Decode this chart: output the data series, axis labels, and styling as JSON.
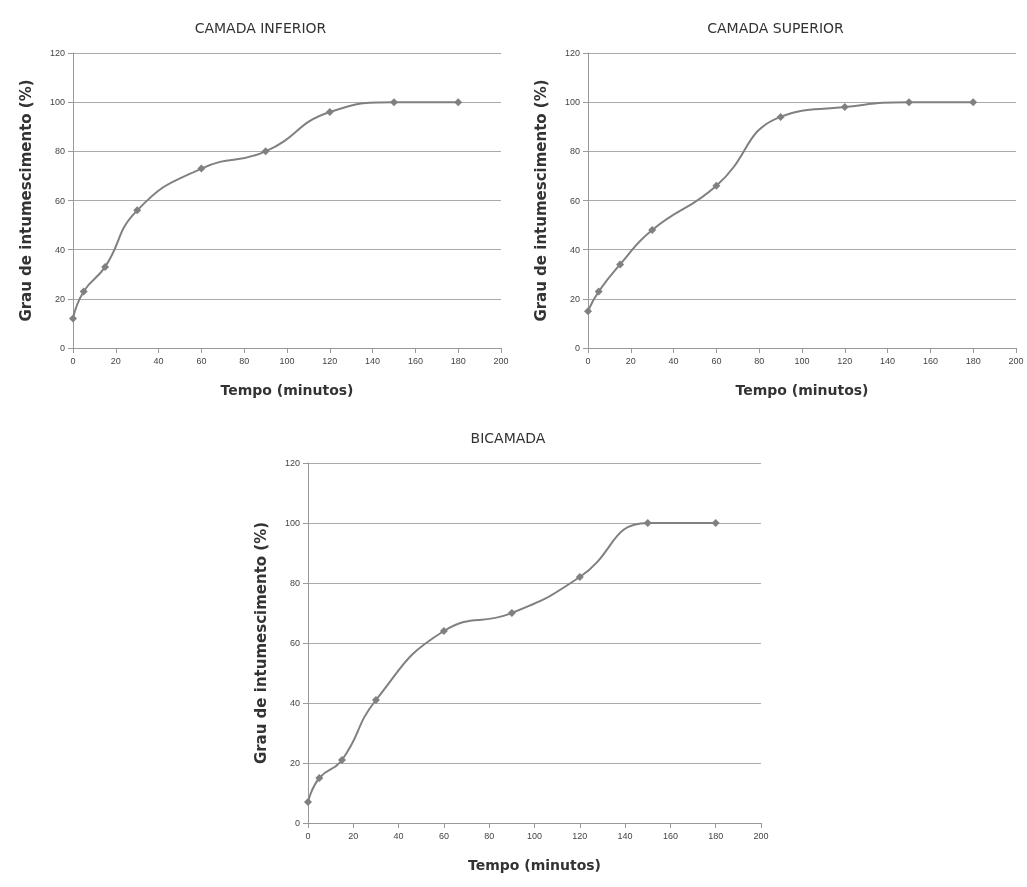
{
  "chart_data": [
    {
      "type": "line",
      "title": "CAMADA INFERIOR",
      "xlabel": "Tempo (minutos)",
      "ylabel": "Grau de intumescimento (%)",
      "x": [
        0,
        5,
        15,
        30,
        60,
        90,
        120,
        150,
        180
      ],
      "series": [
        {
          "color": "#808080",
          "values": [
            12,
            23,
            33,
            56,
            73,
            80,
            96,
            100,
            100
          ]
        }
      ],
      "xlim": [
        0,
        200
      ],
      "xticks": [
        0,
        20,
        40,
        60,
        80,
        100,
        120,
        140,
        160,
        180,
        200
      ],
      "ylim": [
        0,
        120
      ],
      "yticks": [
        0,
        20,
        40,
        60,
        80,
        100,
        120
      ],
      "grid": "y",
      "marker": "diamond",
      "line_style": "solid"
    },
    {
      "type": "line",
      "title": "CAMADA SUPERIOR",
      "xlabel": "Tempo (minutos)",
      "ylabel": "Grau de intumescimento (%)",
      "x": [
        0,
        5,
        15,
        30,
        60,
        90,
        120,
        150,
        180
      ],
      "series": [
        {
          "color": "#808080",
          "values": [
            15,
            23,
            34,
            48,
            66,
            94,
            98,
            100,
            100
          ]
        }
      ],
      "xlim": [
        0,
        200
      ],
      "xticks": [
        0,
        20,
        40,
        60,
        80,
        100,
        120,
        140,
        160,
        180,
        200
      ],
      "ylim": [
        0,
        120
      ],
      "yticks": [
        0,
        20,
        40,
        60,
        80,
        100,
        120
      ],
      "grid": "y",
      "marker": "diamond",
      "line_style": "solid"
    },
    {
      "type": "line",
      "title": "BICAMADA",
      "xlabel": "Tempo (minutos)",
      "ylabel": "Grau de intumescimento (%)",
      "x": [
        0,
        5,
        15,
        30,
        60,
        90,
        120,
        150,
        180
      ],
      "series": [
        {
          "color": "#808080",
          "values": [
            7,
            15,
            21,
            41,
            64,
            70,
            82,
            100,
            100
          ]
        }
      ],
      "xlim": [
        0,
        200
      ],
      "xticks": [
        0,
        20,
        40,
        60,
        80,
        100,
        120,
        140,
        160,
        180,
        200
      ],
      "ylim": [
        0,
        120
      ],
      "yticks": [
        0,
        20,
        40,
        60,
        80,
        100,
        120
      ],
      "grid": "y",
      "marker": "diamond",
      "line_style": "solid"
    }
  ]
}
